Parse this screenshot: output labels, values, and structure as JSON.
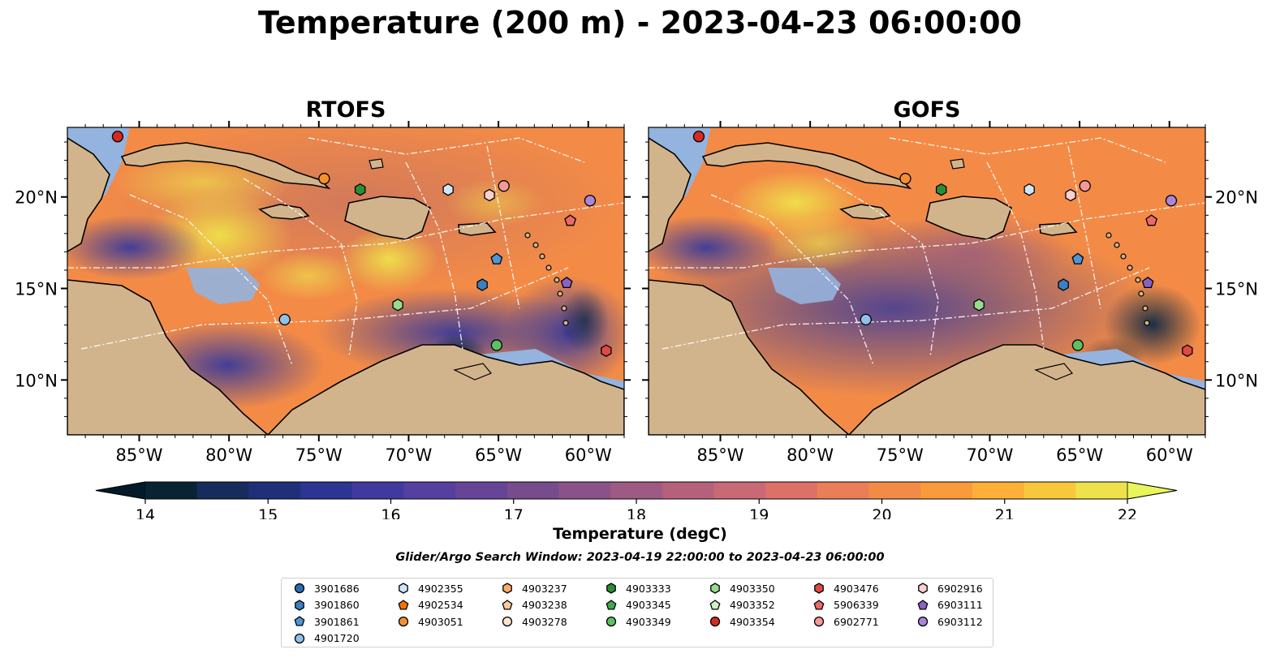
{
  "title": "Temperature (200 m) - 2023-04-23 06:00:00",
  "panels": [
    {
      "title": "RTOFS"
    },
    {
      "title": "GOFS"
    }
  ],
  "map": {
    "lon_ticks": [
      "85°W",
      "80°W",
      "75°W",
      "70°W",
      "65°W",
      "60°W"
    ],
    "lat_ticks": [
      "20°N",
      "15°N",
      "10°N"
    ],
    "land_color": "#d2b48c",
    "shelf_color": "#94b3de"
  },
  "colorbar": {
    "label": "Temperature (degC)",
    "ticks": [
      "14",
      "15",
      "16",
      "17",
      "18",
      "19",
      "20",
      "21",
      "22"
    ],
    "colors": [
      "#0a2333",
      "#162c5c",
      "#1f3078",
      "#2c3591",
      "#403a9f",
      "#553f9f",
      "#664596",
      "#774c8d",
      "#8a5388",
      "#9d5a82",
      "#b5617c",
      "#c96976",
      "#dd7168",
      "#ea7e57",
      "#f38b47",
      "#f99a3b",
      "#fcb038",
      "#f8c83c",
      "#efe14a"
    ],
    "under_color": "#041a28",
    "over_color": "#e9f55a"
  },
  "search_window": "Glider/Argo Search Window: 2023-04-19 22:00:00 to 2023-04-23 06:00:00",
  "legend": [
    {
      "label": "3901686",
      "color": "#2a6db4",
      "marker": "circle"
    },
    {
      "label": "3901860",
      "color": "#3a80c4",
      "marker": "hexagon"
    },
    {
      "label": "3901861",
      "color": "#4d97d6",
      "marker": "pentagon"
    },
    {
      "label": "4901720",
      "color": "#8ec2ea",
      "marker": "circle"
    },
    {
      "label": "4902355",
      "color": "#cfe6f8",
      "marker": "hexagon"
    },
    {
      "label": "4902534",
      "color": "#f0730a",
      "marker": "pentagon"
    },
    {
      "label": "4903051",
      "color": "#f5902c",
      "marker": "circle"
    },
    {
      "label": "4903237",
      "color": "#f9ad68",
      "marker": "hexagon"
    },
    {
      "label": "4903238",
      "color": "#fbc99c",
      "marker": "pentagon"
    },
    {
      "label": "4903278",
      "color": "#fde3cc",
      "marker": "circle"
    },
    {
      "label": "4903333",
      "color": "#2a8f33",
      "marker": "hexagon"
    },
    {
      "label": "4903345",
      "color": "#3fa94a",
      "marker": "pentagon"
    },
    {
      "label": "4903349",
      "color": "#5cc160",
      "marker": "circle"
    },
    {
      "label": "4903350",
      "color": "#97dc8d",
      "marker": "hexagon"
    },
    {
      "label": "4903352",
      "color": "#cff1c6",
      "marker": "pentagon"
    },
    {
      "label": "4903354",
      "color": "#d62a22",
      "marker": "circle"
    },
    {
      "label": "4903476",
      "color": "#e04a44",
      "marker": "hexagon"
    },
    {
      "label": "5906339",
      "color": "#ea6a66",
      "marker": "pentagon"
    },
    {
      "label": "6902771",
      "color": "#f39a98",
      "marker": "circle"
    },
    {
      "label": "6902916",
      "color": "#fbd0d0",
      "marker": "hexagon"
    },
    {
      "label": "6903111",
      "color": "#8a62c2",
      "marker": "pentagon"
    },
    {
      "label": "6903112",
      "color": "#a987d6",
      "marker": "circle"
    }
  ],
  "stations": [
    {
      "id": "4903354",
      "lon": -86.2,
      "lat": 23.3
    },
    {
      "id": "4903051",
      "lon": -74.7,
      "lat": 21.0
    },
    {
      "id": "4903333",
      "lon": -72.7,
      "lat": 20.4
    },
    {
      "id": "4902355",
      "lon": -67.8,
      "lat": 20.4
    },
    {
      "id": "6902916",
      "lon": -65.5,
      "lat": 20.1
    },
    {
      "id": "6902771",
      "lon": -64.7,
      "lat": 20.6
    },
    {
      "id": "6903112",
      "lon": -59.9,
      "lat": 19.8
    },
    {
      "id": "5906339",
      "lon": -61.0,
      "lat": 18.7
    },
    {
      "id": "3901861",
      "lon": -65.1,
      "lat": 16.6
    },
    {
      "id": "3901860",
      "lon": -65.9,
      "lat": 15.2
    },
    {
      "id": "6903111",
      "lon": -61.2,
      "lat": 15.3
    },
    {
      "id": "4903350",
      "lon": -70.6,
      "lat": 14.1
    },
    {
      "id": "4901720",
      "lon": -76.9,
      "lat": 13.3
    },
    {
      "id": "4903349",
      "lon": -65.1,
      "lat": 11.9
    },
    {
      "id": "4903476",
      "lon": -59.0,
      "lat": 11.6
    }
  ]
}
